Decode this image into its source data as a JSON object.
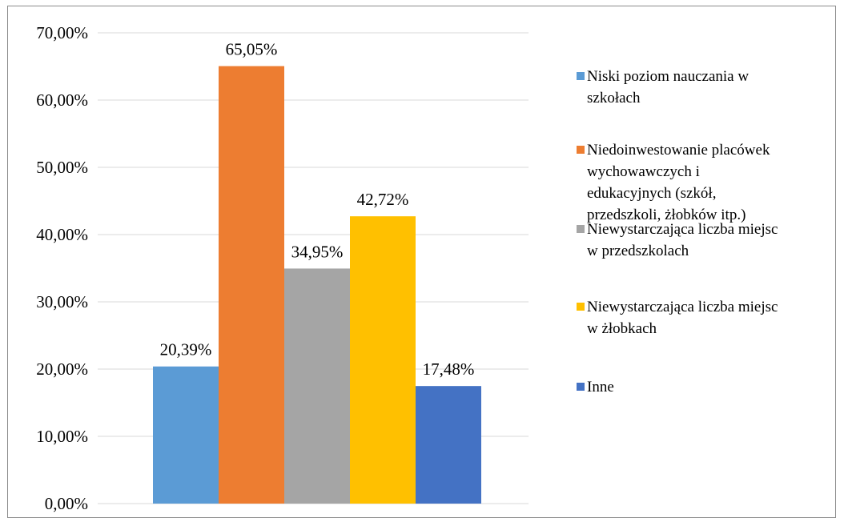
{
  "chart_data": {
    "type": "bar",
    "categories": [
      "Niski poziom nauczania w szkołach",
      "Niedoinwestowanie placówek wychowawczych i edukacyjnych (szkół, przedszkoli, żłobków itp.)",
      "Niewystarczająca liczba miejsc w przedszkolach",
      "Niewystarczająca liczba miejsc w żłobkach",
      "Inne"
    ],
    "values": [
      20.39,
      65.05,
      34.95,
      42.72,
      17.48
    ],
    "data_labels": [
      "20,39%",
      "65,05%",
      "34,95%",
      "42,72%",
      "17,48%"
    ],
    "colors": [
      "#5b9bd5",
      "#ed7d31",
      "#a5a5a5",
      "#ffc000",
      "#4472c4"
    ],
    "ylim": [
      0,
      70
    ],
    "yticks": [
      0,
      10,
      20,
      30,
      40,
      50,
      60,
      70
    ],
    "ytick_labels": [
      "0,00%",
      "10,00%",
      "20,00%",
      "30,00%",
      "40,00%",
      "50,00%",
      "60,00%",
      "70,00%"
    ],
    "grid": true,
    "legend_position": "right",
    "legend": [
      {
        "lines": [
          "Niski poziom nauczania w",
          "szkołach"
        ],
        "color": "#5b9bd5"
      },
      {
        "lines": [
          "Niedoinwestowanie placówek",
          "wychowawczych i",
          "edukacyjnych (szkół,",
          "przedszkoli, żłobków itp.)"
        ],
        "color": "#ed7d31"
      },
      {
        "lines": [
          "Niewystarczająca liczba miejsc",
          "w przedszkolach"
        ],
        "color": "#a5a5a5"
      },
      {
        "lines": [
          "Niewystarczająca liczba miejsc",
          "w żłobkach"
        ],
        "color": "#ffc000"
      },
      {
        "lines": [
          "Inne"
        ],
        "color": "#4472c4"
      }
    ]
  }
}
